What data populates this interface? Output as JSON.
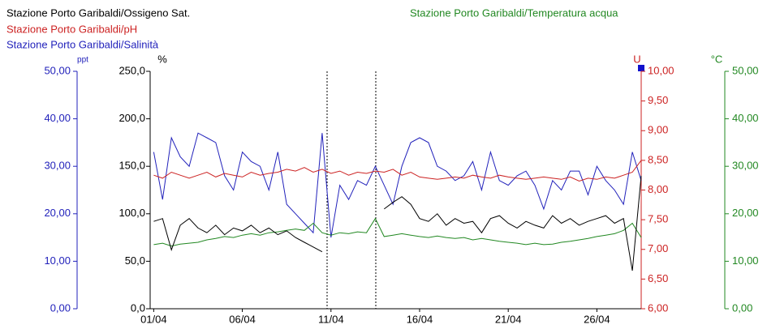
{
  "chart_data": {
    "type": "line",
    "x": [
      1,
      1.5,
      2,
      2.5,
      3,
      3.5,
      4,
      4.5,
      5,
      5.5,
      6,
      6.5,
      7,
      7.5,
      8,
      8.5,
      9,
      9.5,
      10,
      10.5,
      11,
      11.5,
      12,
      12.5,
      13,
      13.5,
      14,
      14.5,
      15,
      15.5,
      16,
      16.5,
      17,
      17.5,
      18,
      18.5,
      19,
      19.5,
      20,
      20.5,
      21,
      21.5,
      22,
      22.5,
      23,
      23.5,
      24,
      24.5,
      25,
      25.5,
      26,
      26.5,
      27,
      27.5,
      28,
      28.5
    ],
    "xlim": [
      0.8,
      28.5
    ],
    "xticks": [
      {
        "value": 1,
        "label": "01/04"
      },
      {
        "value": 6,
        "label": "06/04"
      },
      {
        "value": 11,
        "label": "11/04"
      },
      {
        "value": 16,
        "label": "16/04"
      },
      {
        "value": 21,
        "label": "21/04"
      },
      {
        "value": 26,
        "label": "26/04"
      }
    ],
    "axes": [
      {
        "label": "ppt",
        "color": "#2222bb",
        "ylim": [
          0,
          50
        ],
        "yticks": [
          {
            "value": 0,
            "label": "0,00"
          },
          {
            "value": 10,
            "label": "10,00"
          },
          {
            "value": 20,
            "label": "20,00"
          },
          {
            "value": 30,
            "label": "30,00"
          },
          {
            "value": 40,
            "label": "40,00"
          },
          {
            "value": 50,
            "label": "50,00"
          }
        ]
      },
      {
        "label": "%",
        "color": "#000000",
        "ylim": [
          0,
          250
        ],
        "yticks": [
          {
            "value": 0,
            "label": "0,0"
          },
          {
            "value": 50,
            "label": "50,0"
          },
          {
            "value": 100,
            "label": "100,0"
          },
          {
            "value": 150,
            "label": "150,0"
          },
          {
            "value": 200,
            "label": "200,0"
          },
          {
            "value": 250,
            "label": "250,0"
          }
        ]
      },
      {
        "label": "U",
        "color": "#cc2222",
        "ylim": [
          6,
          10
        ],
        "yticks": [
          {
            "value": 6,
            "label": "6,00"
          },
          {
            "value": 6.5,
            "label": "6,50"
          },
          {
            "value": 7,
            "label": "7,00"
          },
          {
            "value": 7.5,
            "label": "7,50"
          },
          {
            "value": 8,
            "label": "8,00"
          },
          {
            "value": 8.5,
            "label": "8,50"
          },
          {
            "value": 9,
            "label": "9,00"
          },
          {
            "value": 9.5,
            "label": "9,50"
          },
          {
            "value": 10,
            "label": "10,00"
          }
        ]
      },
      {
        "label": "°C",
        "color": "#228822",
        "ylim": [
          0,
          50
        ],
        "yticks": [
          {
            "value": 0,
            "label": "0,00"
          },
          {
            "value": 10,
            "label": "10,00"
          },
          {
            "value": 20,
            "label": "20,00"
          },
          {
            "value": 30,
            "label": "30,00"
          },
          {
            "value": 40,
            "label": "40,00"
          },
          {
            "value": 50,
            "label": "50,00"
          }
        ]
      }
    ],
    "series": [
      {
        "name": "Stazione Porto Garibaldi/Ossigeno Sat.",
        "color": "#000000",
        "axis": 1,
        "values": [
          92,
          95,
          62,
          88,
          95,
          85,
          80,
          88,
          78,
          85,
          82,
          88,
          80,
          85,
          78,
          82,
          75,
          70,
          65,
          60,
          null,
          null,
          null,
          null,
          null,
          null,
          105,
          112,
          118,
          110,
          95,
          92,
          100,
          88,
          95,
          90,
          92,
          80,
          95,
          98,
          90,
          85,
          92,
          88,
          85,
          98,
          90,
          95,
          88,
          92,
          95,
          98,
          90,
          95,
          40,
          140
        ]
      },
      {
        "name": "Stazione Porto Garibaldi/pH",
        "color": "#cc2222",
        "axis": 2,
        "values": [
          8.25,
          8.2,
          8.3,
          8.25,
          8.2,
          8.25,
          8.3,
          8.22,
          8.28,
          8.25,
          8.22,
          8.3,
          8.25,
          8.28,
          8.3,
          8.35,
          8.32,
          8.38,
          8.3,
          8.35,
          8.28,
          8.32,
          8.25,
          8.3,
          8.28,
          8.32,
          8.3,
          8.35,
          8.25,
          8.3,
          8.22,
          8.2,
          8.18,
          8.2,
          8.22,
          8.2,
          8.25,
          8.22,
          8.2,
          8.25,
          8.22,
          8.2,
          8.18,
          8.2,
          8.22,
          8.2,
          8.18,
          8.22,
          8.15,
          8.2,
          8.18,
          8.22,
          8.2,
          8.25,
          8.3,
          8.5
        ]
      },
      {
        "name": "Stazione Porto Garibaldi/Salinità",
        "color": "#2222bb",
        "axis": 0,
        "values": [
          33,
          23,
          36,
          32,
          30,
          37,
          36,
          35,
          28,
          25,
          33,
          31,
          30,
          25,
          33,
          22,
          20,
          18,
          16,
          37,
          15,
          26,
          23,
          27,
          26,
          30,
          26,
          22,
          30,
          35,
          36,
          35,
          30,
          29,
          27,
          28,
          31,
          25,
          33,
          27,
          26,
          28,
          29,
          26,
          21,
          27,
          25,
          29,
          29,
          24,
          30,
          27,
          25,
          22,
          33,
          27
        ]
      },
      {
        "name": "Stazione Porto Garibaldi/Temperatura acqua",
        "color": "#228822",
        "axis": 3,
        "values": [
          13.5,
          13.8,
          13.2,
          13.6,
          13.8,
          14,
          14.5,
          14.8,
          15.2,
          15,
          15.5,
          15.8,
          15.5,
          16,
          16.2,
          16.5,
          16.8,
          16.5,
          18,
          16,
          15.5,
          16,
          15.8,
          16.2,
          16,
          19,
          15.2,
          15.5,
          15.8,
          15.5,
          15.2,
          15,
          15.3,
          15,
          14.8,
          15,
          14.5,
          14.8,
          14.5,
          14.2,
          14,
          13.8,
          13.5,
          13.8,
          13.5,
          13.6,
          14,
          14.2,
          14.5,
          14.8,
          15.2,
          15.5,
          15.8,
          16.5,
          18,
          15
        ]
      }
    ]
  }
}
